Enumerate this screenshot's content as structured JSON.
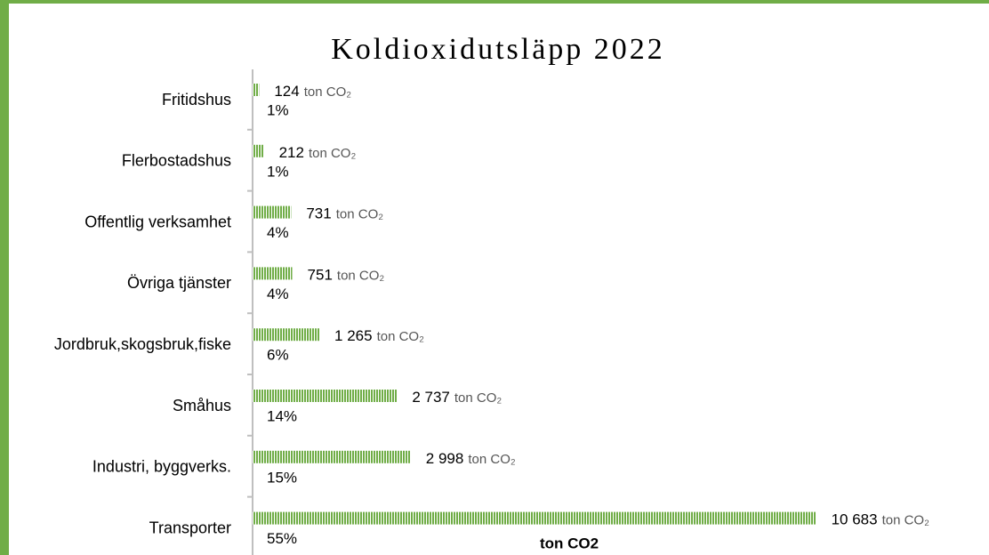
{
  "chart_data": {
    "type": "bar",
    "orientation": "horizontal",
    "title": "Koldioxidutsläpp 2022",
    "categories": [
      "Fritidshus",
      "Flerbostadshus",
      "Offentlig verksamhet",
      "Övriga tjänster",
      "Jordbruk,skogsbruk,fiske",
      "Småhus",
      "Industri, byggverks.",
      "Transporter"
    ],
    "values": [
      124,
      212,
      731,
      751,
      1265,
      2737,
      2998,
      10683
    ],
    "value_labels": [
      "124",
      "212",
      "731",
      "751",
      "1 265",
      "2 737",
      "2 998",
      "10 683"
    ],
    "unit_label": "ton CO₂",
    "shares": [
      1,
      1,
      4,
      4,
      6,
      14,
      15,
      55
    ],
    "share_labels": [
      "1%",
      "1%",
      "4%",
      "4%",
      "6%",
      "14%",
      "15%",
      "55%"
    ],
    "x_label": "ton CO2",
    "color": "#70ad47",
    "xlim": [
      0,
      13000
    ]
  }
}
